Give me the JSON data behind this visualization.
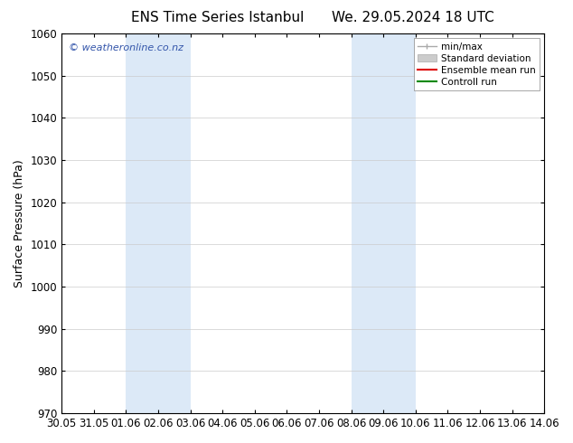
{
  "title_left": "ENS Time Series Istanbul",
  "title_right": "We. 29.05.2024 18 UTC",
  "ylabel": "Surface Pressure (hPa)",
  "ylim": [
    970,
    1060
  ],
  "yticks": [
    970,
    980,
    990,
    1000,
    1010,
    1020,
    1030,
    1040,
    1050,
    1060
  ],
  "xtick_labels": [
    "30.05",
    "31.05",
    "01.06",
    "02.06",
    "03.06",
    "04.06",
    "05.06",
    "06.06",
    "07.06",
    "08.06",
    "09.06",
    "10.06",
    "11.06",
    "12.06",
    "13.06",
    "14.06"
  ],
  "xtick_positions": [
    0,
    1,
    2,
    3,
    4,
    5,
    6,
    7,
    8,
    9,
    10,
    11,
    12,
    13,
    14,
    15
  ],
  "shade_regions": [
    {
      "xmin": 2,
      "xmax": 4
    },
    {
      "xmin": 9,
      "xmax": 11
    }
  ],
  "shade_color": "#dce9f7",
  "watermark_text": "© weatheronline.co.nz",
  "watermark_color": "#3355aa",
  "legend_items": [
    {
      "label": "min/max",
      "color": "#aaaaaa",
      "lw": 1.0
    },
    {
      "label": "Standard deviation",
      "color": "#cccccc",
      "lw": 6
    },
    {
      "label": "Ensemble mean run",
      "color": "#dd0000",
      "lw": 1.5
    },
    {
      "label": "Controll run",
      "color": "#008800",
      "lw": 1.5
    }
  ],
  "bg_color": "#ffffff",
  "grid_color": "#cccccc",
  "title_fontsize": 11,
  "axis_fontsize": 9,
  "tick_fontsize": 8.5,
  "legend_fontsize": 7.5
}
